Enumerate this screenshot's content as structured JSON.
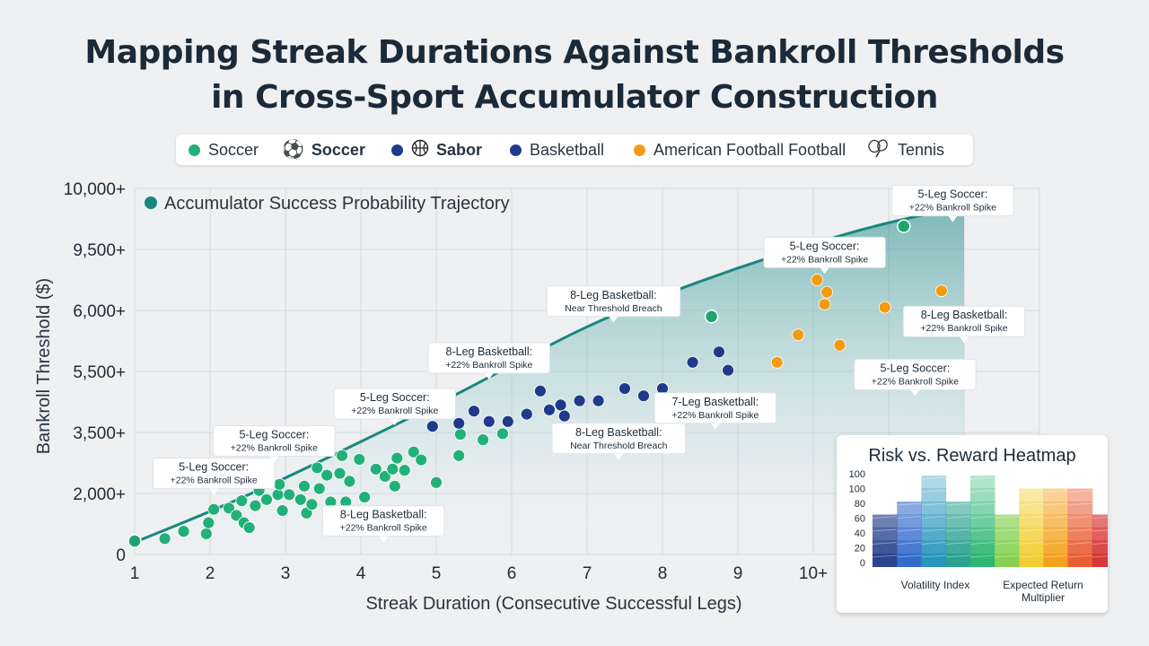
{
  "title_line1": "Mapping Streak Durations Against Bankroll Thresholds",
  "title_line2": "in Cross-Sport Accumulator Construction",
  "legend": [
    {
      "label": "Soccer",
      "color": "#22b07a",
      "icon": "dot",
      "bold": false
    },
    {
      "label": "Soccer",
      "color": "#1a1a1a",
      "icon": "soccer-ball-icon",
      "bold": true
    },
    {
      "label": "Sabor",
      "color": "#1f3a8a",
      "icon": "basketball-icon",
      "bold": true
    },
    {
      "label": "Basketball",
      "color": "#1f3a8a",
      "icon": "dot",
      "bold": false
    },
    {
      "label": "American Football Football",
      "color": "#f39c12",
      "icon": "dot",
      "bold": false
    },
    {
      "label": "Tennis",
      "color": "#444444",
      "icon": "tennis-icon",
      "bold": false
    }
  ],
  "chart_data": {
    "type": "scatter",
    "xlabel": "Streak Duration (Consecutive Successful Legs)",
    "ylabel": "Bankroll Threshold ($)",
    "x_ticks": [
      "1",
      "2",
      "3",
      "4",
      "5",
      "6",
      "7",
      "8",
      "9",
      "10+"
    ],
    "y_ticks": [
      "0",
      "2,000+",
      "3,500+",
      "5,500+",
      "6,000+",
      "9,500+",
      "10,000+"
    ],
    "trajectory_label": "Accumulator Success Probability Trajectory",
    "trajectory": [
      [
        1,
        0.2
      ],
      [
        2,
        0.7
      ],
      [
        3,
        1.25
      ],
      [
        4,
        1.85
      ],
      [
        5,
        2.45
      ],
      [
        6,
        3.1
      ],
      [
        7,
        3.75
      ],
      [
        8,
        4.25
      ],
      [
        9,
        4.7
      ],
      [
        10,
        5.1
      ],
      [
        11,
        5.45
      ],
      [
        12,
        5.7
      ]
    ],
    "trajectory_points": [
      [
        1,
        0.22
      ],
      [
        8.65,
        3.9
      ],
      [
        11.2,
        5.38
      ],
      [
        12.0,
        5.75
      ]
    ],
    "series": [
      {
        "name": "Soccer",
        "color": "#22b07a",
        "points": [
          [
            1.4,
            0.26
          ],
          [
            1.65,
            0.38
          ],
          [
            1.95,
            0.34
          ],
          [
            1.98,
            0.52
          ],
          [
            2.05,
            0.74
          ],
          [
            2.25,
            0.76
          ],
          [
            2.35,
            0.64
          ],
          [
            2.42,
            0.88
          ],
          [
            2.45,
            0.52
          ],
          [
            2.52,
            0.44
          ],
          [
            2.6,
            0.8
          ],
          [
            2.65,
            1.05
          ],
          [
            2.75,
            0.9
          ],
          [
            2.9,
            0.98
          ],
          [
            2.92,
            1.15
          ],
          [
            2.96,
            0.72
          ],
          [
            3.05,
            0.98
          ],
          [
            3.2,
            0.9
          ],
          [
            3.25,
            1.12
          ],
          [
            3.28,
            0.68
          ],
          [
            3.35,
            0.82
          ],
          [
            3.42,
            1.42
          ],
          [
            3.45,
            1.08
          ],
          [
            3.55,
            1.3
          ],
          [
            3.6,
            0.86
          ],
          [
            3.72,
            1.33
          ],
          [
            3.75,
            1.62
          ],
          [
            3.8,
            0.86
          ],
          [
            3.85,
            1.2
          ],
          [
            3.98,
            1.56
          ],
          [
            4.05,
            0.94
          ],
          [
            4.2,
            1.4
          ],
          [
            4.32,
            1.28
          ],
          [
            4.42,
            1.4
          ],
          [
            4.45,
            1.12
          ],
          [
            4.48,
            1.58
          ],
          [
            4.58,
            1.38
          ],
          [
            4.7,
            1.68
          ],
          [
            4.8,
            1.55
          ],
          [
            5.0,
            1.18
          ],
          [
            5.3,
            1.62
          ],
          [
            5.32,
            1.97
          ],
          [
            5.62,
            1.88
          ],
          [
            5.88,
            1.98
          ]
        ]
      },
      {
        "name": "Basketball",
        "color": "#1f3a8a",
        "points": [
          [
            4.95,
            2.1
          ],
          [
            5.3,
            2.15
          ],
          [
            5.5,
            2.35
          ],
          [
            5.7,
            2.18
          ],
          [
            5.95,
            2.18
          ],
          [
            6.2,
            2.3
          ],
          [
            6.38,
            2.68
          ],
          [
            6.5,
            2.37
          ],
          [
            6.65,
            2.45
          ],
          [
            6.7,
            2.27
          ],
          [
            6.9,
            2.52
          ],
          [
            7.15,
            2.52
          ],
          [
            7.5,
            2.72
          ],
          [
            7.75,
            2.6
          ],
          [
            8.0,
            2.72
          ],
          [
            8.4,
            3.15
          ],
          [
            8.75,
            3.32
          ],
          [
            8.87,
            3.02
          ]
        ]
      },
      {
        "name": "American Football Football",
        "color": "#f39c12",
        "points": [
          [
            9.52,
            3.15
          ],
          [
            9.8,
            3.6
          ],
          [
            10.05,
            4.5
          ],
          [
            10.15,
            4.1
          ],
          [
            10.18,
            4.3
          ],
          [
            10.35,
            3.43
          ],
          [
            10.95,
            4.05
          ],
          [
            11.7,
            4.32
          ]
        ]
      }
    ],
    "annotations": [
      {
        "line1": "5-Leg Soccer:",
        "line2": "+22% Bankroll Spike",
        "x": 2.05,
        "y": 1.33
      },
      {
        "line1": "5-Leg Soccer:",
        "line2": "+22% Bankroll Spike",
        "x": 2.85,
        "y": 1.86
      },
      {
        "line1": "5-Leg Soccer:",
        "line2": "+22% Bankroll Spike",
        "x": 4.45,
        "y": 2.47
      },
      {
        "line1": "8-Leg Basketball:",
        "line2": "+22% Bankroll Spike",
        "x": 4.3,
        "y": 0.55
      },
      {
        "line1": "8-Leg Basketball:",
        "line2": "+22% Bankroll Spike",
        "x": 5.7,
        "y": 3.22
      },
      {
        "line1": "8-Leg Basketball:",
        "line2": "Near Threshold Breach",
        "x": 7.35,
        "y": 4.15
      },
      {
        "line1": "8-Leg Basketball:",
        "line2": "Near Threshold Breach",
        "x": 7.42,
        "y": 1.9
      },
      {
        "line1": "7-Leg Basketball:",
        "line2": "+22% Bankroll Spike",
        "x": 8.7,
        "y": 2.4
      },
      {
        "line1": "5-Leg Soccer:",
        "line2": "+22% Bankroll Spike",
        "x": 10.15,
        "y": 4.95
      },
      {
        "line1": "5-Leg Soccer:",
        "line2": "+22% Bankroll Spike",
        "x": 11.35,
        "y": 2.95
      },
      {
        "line1": "8-Leg Basketball:",
        "line2": "+22% Bankroll Spike",
        "x": 12.0,
        "y": 3.82
      },
      {
        "line1": "5-Leg Soccer:",
        "line2": "+22% Bankroll Spike",
        "x": 11.85,
        "y": 5.8
      }
    ],
    "grid": true
  },
  "heatmap": {
    "title": "Risk vs. Reward Heatmap",
    "y_ticks": [
      "100",
      "100",
      "80",
      "60",
      "40",
      "20",
      "0"
    ],
    "xlabels": [
      "Volatility Index",
      "Expected Return Multiplier"
    ],
    "columns": [
      "#1f3a8a",
      "#2a63c9",
      "#1c8fb8",
      "#1f9c8a",
      "#23b26b",
      "#7fcf4a",
      "#f2cb2a",
      "#f39c12",
      "#e8562a",
      "#d42c2c"
    ]
  }
}
